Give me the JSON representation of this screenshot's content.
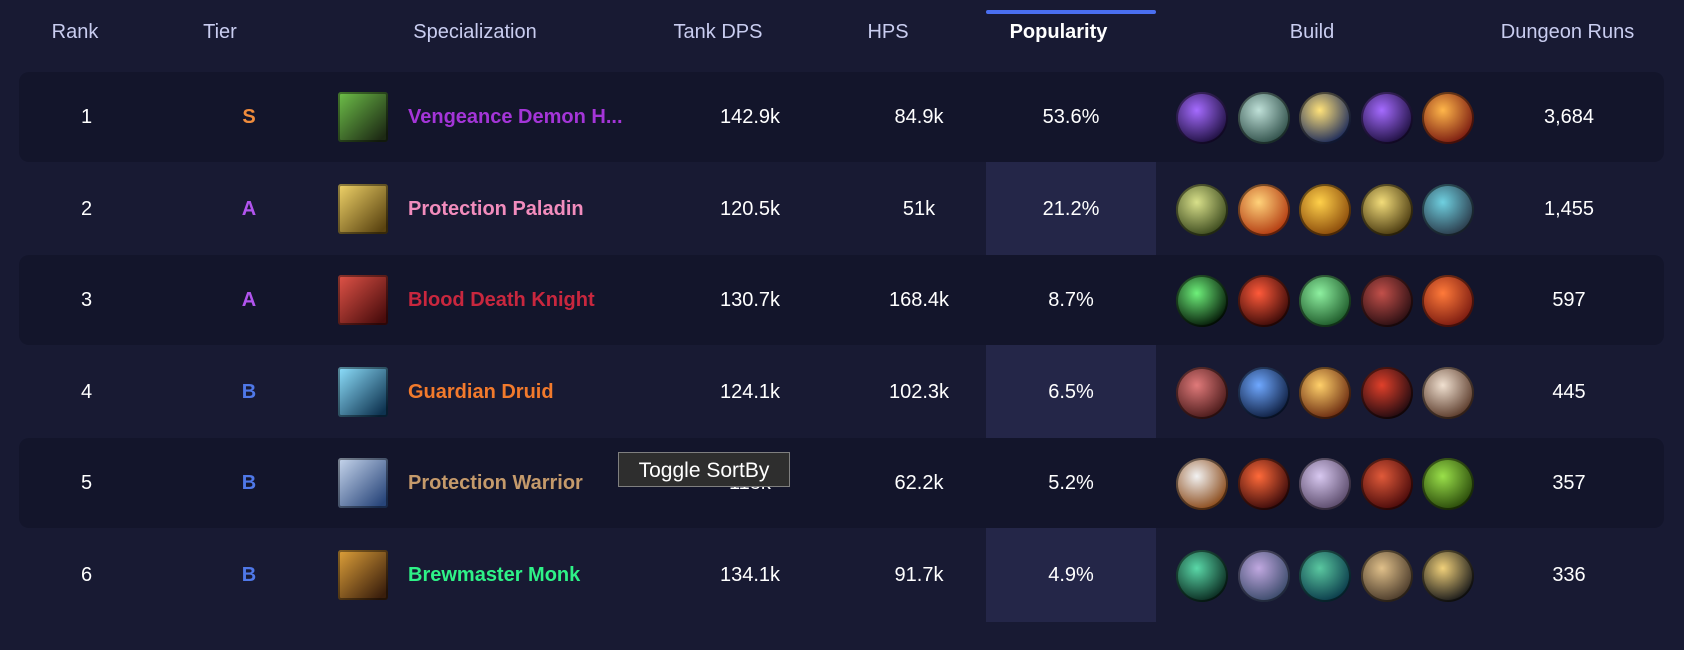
{
  "headers": {
    "rank": "Rank",
    "tier": "Tier",
    "specialization": "Specialization",
    "tank_dps": "Tank DPS",
    "hps": "HPS",
    "popularity": "Popularity",
    "build": "Build",
    "dungeon_runs": "Dungeon Runs"
  },
  "tier_colors": {
    "S": "#f08c3c",
    "A": "#b154ee",
    "B": "#4f78e8"
  },
  "rows": [
    {
      "rank": "1",
      "tier": "S",
      "spec": "Vengeance Demon H...",
      "spec_color": "#a435d8",
      "dps": "142.9k",
      "hps": "84.9k",
      "pop": "53.6%",
      "runs": "3,684",
      "spec_icon": "vengeance-demon-hunter-icon",
      "build": [
        "purple-orb-icon",
        "skull-mask-icon",
        "golden-strike-icon",
        "purple-orb-icon",
        "fire-sigil-icon"
      ]
    },
    {
      "rank": "2",
      "tier": "A",
      "spec": "Protection Paladin",
      "spec_color": "#f28cbd",
      "dps": "120.5k",
      "hps": "51k",
      "pop": "21.2%",
      "runs": "1,455",
      "spec_icon": "protection-paladin-icon",
      "build": [
        "holy-beast-icon",
        "flame-pillar-icon",
        "golden-warrior-icon",
        "paladin-helm-icon",
        "arcane-shield-icon"
      ]
    },
    {
      "rank": "3",
      "tier": "A",
      "spec": "Blood Death Knight",
      "spec_color": "#c9273e",
      "dps": "130.7k",
      "hps": "168.4k",
      "pop": "8.7%",
      "runs": "597",
      "spec_icon": "blood-death-knight-icon",
      "build": [
        "green-portal-icon",
        "demon-face-icon",
        "green-skull-icon",
        "bloody-blade-icon",
        "blood-claw-icon"
      ]
    },
    {
      "rank": "4",
      "tier": "B",
      "spec": "Guardian Druid",
      "spec_color": "#f27a2c",
      "dps": "124.1k",
      "hps": "102.3k",
      "pop": "6.5%",
      "runs": "445",
      "spec_icon": "guardian-druid-icon",
      "build": [
        "claw-rend-icon",
        "blue-beast-icon",
        "golden-mace-icon",
        "red-wolf-icon",
        "claw-strike-icon"
      ]
    },
    {
      "rank": "5",
      "tier": "B",
      "spec": "Protection Warrior",
      "spec_color": "#c59a6b",
      "dps": "118k",
      "hps": "62.2k",
      "pop": "5.2%",
      "runs": "357",
      "spec_icon": "protection-warrior-icon",
      "build": [
        "warrior-shield-icon",
        "fire-slash-icon",
        "shouting-warrior-icon",
        "red-brute-icon",
        "green-orc-icon"
      ]
    },
    {
      "rank": "6",
      "tier": "B",
      "spec": "Brewmaster Monk",
      "spec_color": "#2ef287",
      "dps": "134.1k",
      "hps": "91.7k",
      "pop": "4.9%",
      "runs": "336",
      "spec_icon": "brewmaster-monk-icon",
      "build": [
        "jade-swirl-icon",
        "monk-kick-icon",
        "jade-serpent-icon",
        "brew-keg-icon",
        "drunken-ox-icon"
      ]
    }
  ],
  "tooltip": {
    "text": "Toggle SortBy"
  }
}
